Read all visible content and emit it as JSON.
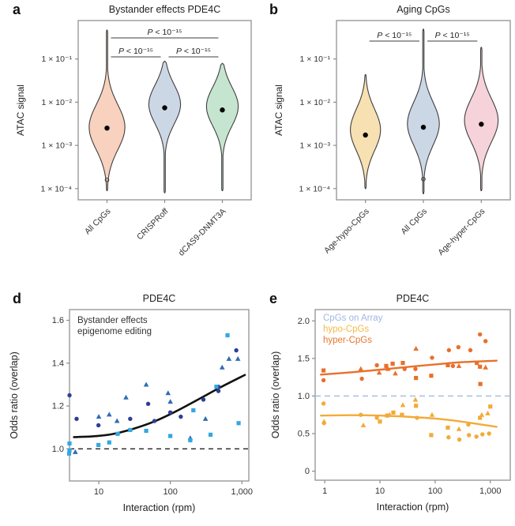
{
  "panels": [
    {
      "id": "a",
      "letter": "a"
    },
    {
      "id": "b",
      "letter": "b"
    },
    {
      "id": "d",
      "letter": "d"
    },
    {
      "id": "e",
      "letter": "e"
    }
  ],
  "styles": {
    "box_color": "#999999",
    "tick_color": "#8c8c8c",
    "tick_label_color": "#333333",
    "axis_label_color": "#222222",
    "title_color": "#222222",
    "violin_stroke": "#3f3f3f",
    "median_dot_color": "#000000",
    "pvalue_color": "#222222"
  },
  "chart_data": [
    {
      "id": "a",
      "type": "violin",
      "title": "Bystander effects PDE4C",
      "ylabel": "ATAC signal",
      "yscale": "log10",
      "ylim_log10": [
        -4.26,
        -0.11
      ],
      "yticks": [
        {
          "log10": -1,
          "label": "1 × 10⁻¹"
        },
        {
          "log10": -2,
          "label": "1 × 10⁻²"
        },
        {
          "log10": -3,
          "label": "1 × 10⁻³"
        },
        {
          "log10": -4,
          "label": "1 × 10⁻⁴"
        }
      ],
      "categories": [
        "All CpGs",
        "CRISPRoff",
        "dCAS9-DNMT3A"
      ],
      "violins": [
        {
          "label": "All CpGs",
          "fill": "#f8d2be",
          "median_log10": -2.6,
          "peak_log10": -2.58,
          "spread": 0.52,
          "tip_log10": -0.33,
          "tail_log10": -4.05,
          "halfwidth": 0.62,
          "ring_log10": -3.8
        },
        {
          "label": "CRISPRoff",
          "fill": "#ccd7e6",
          "median_log10": -2.13,
          "peak_log10": -2.05,
          "spread": 0.45,
          "tip_log10": -1.05,
          "tail_log10": -4.1,
          "halfwidth": 0.55
        },
        {
          "label": "dCAS9-DNMT3A",
          "fill": "#c6e5d0",
          "median_log10": -2.18,
          "peak_log10": -2.1,
          "spread": 0.45,
          "tip_log10": -1.1,
          "tail_log10": -4.05,
          "halfwidth": 0.55
        }
      ],
      "significance": [
        {
          "label": "P < 10⁻¹⁵",
          "from": 0,
          "to": 2,
          "y_offset": 22
        },
        {
          "label": "P < 10⁻¹⁵",
          "from": 0,
          "to": 1,
          "y_offset": 46
        },
        {
          "label": "P < 10⁻¹⁵",
          "from": 1,
          "to": 2,
          "y_offset": 46
        }
      ]
    },
    {
      "id": "b",
      "type": "violin",
      "title": "Aging CpGs",
      "ylabel": "ATAC signal",
      "yscale": "log10",
      "ylim_log10": [
        -4.26,
        -0.11
      ],
      "yticks": [
        {
          "log10": -1,
          "label": "1 × 10⁻¹"
        },
        {
          "log10": -2,
          "label": "1 × 10⁻²"
        },
        {
          "log10": -3,
          "label": "1 × 10⁻³"
        },
        {
          "log10": -4,
          "label": "1 × 10⁻⁴"
        }
      ],
      "categories": [
        "Age-hypo-CpGs",
        "All CpGs",
        "Age-hyper-CpGs"
      ],
      "violins": [
        {
          "label": "Age-hypo-CpGs",
          "fill": "#f7e0b2",
          "median_log10": -2.76,
          "peak_log10": -2.64,
          "spread": 0.48,
          "tip_log10": -1.36,
          "tail_log10": -4.0,
          "halfwidth": 0.52
        },
        {
          "label": "All CpGs",
          "fill": "#ccd7e6",
          "median_log10": -2.58,
          "peak_log10": -2.5,
          "spread": 0.5,
          "tip_log10": -0.31,
          "tail_log10": -4.12,
          "halfwidth": 0.55,
          "ring_log10": -3.78
        },
        {
          "label": "Age-hyper-CpGs",
          "fill": "#f6d3da",
          "median_log10": -2.51,
          "peak_log10": -2.42,
          "spread": 0.5,
          "tip_log10": -0.73,
          "tail_log10": -4.05,
          "halfwidth": 0.58
        }
      ],
      "significance": [
        {
          "label": "P < 10⁻¹⁵",
          "from": 0,
          "to": 1,
          "y_offset": 26
        },
        {
          "label": "P < 10⁻¹⁵",
          "from": 1,
          "to": 2,
          "y_offset": 26
        }
      ]
    },
    {
      "id": "d",
      "type": "scatter",
      "title": "PDE4C",
      "xlabel": "Interaction (rpm)",
      "ylabel": "Odds ratio (overlap)",
      "xscale": "log10",
      "xlim": [
        3.9,
        1250
      ],
      "ylim": [
        0.85,
        1.65
      ],
      "xticks": [
        {
          "v": 10,
          "label": "10"
        },
        {
          "v": 100,
          "label": "100"
        },
        {
          "v": 1000,
          "label": "1,000"
        }
      ],
      "yticks": [
        {
          "v": 1.0,
          "label": "1.0"
        },
        {
          "v": 1.2,
          "label": "1.2"
        },
        {
          "v": 1.4,
          "label": "1.4"
        },
        {
          "v": 1.6,
          "label": "1.6"
        }
      ],
      "annotation": [
        "Bystander effects",
        "epigenome editing"
      ],
      "ref_line": {
        "y": 1.0,
        "color": "#222222",
        "dash": "6,5",
        "width": 1.4
      },
      "trends": [
        {
          "name": "fit",
          "color": "#111111",
          "width": 2.6,
          "points": [
            [
              4.5,
              1.055
            ],
            [
              8,
              1.058
            ],
            [
              15,
              1.068
            ],
            [
              30,
              1.093
            ],
            [
              60,
              1.128
            ],
            [
              120,
              1.175
            ],
            [
              250,
              1.232
            ],
            [
              500,
              1.287
            ],
            [
              1100,
              1.345
            ]
          ]
        }
      ],
      "series": [
        {
          "name": "circle-points",
          "marker": "c",
          "color": "#2c3f97",
          "points": [
            [
              3.9,
              1.25
            ],
            [
              4.9,
              1.14
            ],
            [
              9.9,
              1.11
            ],
            [
              27.5,
              1.14
            ],
            [
              49,
              1.21
            ],
            [
              60,
              1.13
            ],
            [
              100,
              1.17
            ],
            [
              140,
              1.15
            ],
            [
              290,
              1.23
            ],
            [
              470,
              1.29
            ],
            [
              470,
              1.27
            ],
            [
              835,
              1.46
            ]
          ]
        },
        {
          "name": "triangle-points",
          "marker": "t",
          "color": "#2e6cb5",
          "points": [
            [
              4.7,
              0.985
            ],
            [
              10,
              1.15
            ],
            [
              14,
              1.16
            ],
            [
              18,
              1.13
            ],
            [
              24,
              1.24
            ],
            [
              46,
              1.3
            ],
            [
              93,
              1.26
            ],
            [
              100,
              1.22
            ],
            [
              190,
              1.05
            ],
            [
              310,
              1.14
            ],
            [
              530,
              1.38
            ],
            [
              660,
              1.42
            ],
            [
              880,
              1.42
            ]
          ]
        },
        {
          "name": "square-points",
          "marker": "s",
          "color": "#33a7e0",
          "points": [
            [
              3.9,
              1.025
            ],
            [
              3.9,
              0.993
            ],
            [
              3.85,
              0.978
            ],
            [
              9.9,
              1.018
            ],
            [
              14,
              1.03
            ],
            [
              18.4,
              1.07
            ],
            [
              27.5,
              1.088
            ],
            [
              46,
              1.084
            ],
            [
              100,
              1.06
            ],
            [
              190,
              1.04
            ],
            [
              210,
              1.18
            ],
            [
              365,
              1.066
            ],
            [
              440,
              1.29
            ],
            [
              630,
              1.53
            ],
            [
              900,
              1.12
            ]
          ]
        }
      ]
    },
    {
      "id": "e",
      "type": "scatter",
      "title": "PDE4C",
      "xlabel": "Interaction (rpm)",
      "ylabel": "Odds ratio (overlap)",
      "xscale": "log10",
      "xlim": [
        0.67,
        2300
      ],
      "ylim": [
        -0.12,
        2.15
      ],
      "xticks": [
        {
          "v": 1,
          "label": "1"
        },
        {
          "v": 10,
          "label": "10"
        },
        {
          "v": 100,
          "label": "100"
        },
        {
          "v": 1000,
          "label": "1,000"
        }
      ],
      "yticks": [
        {
          "v": 0,
          "label": "0"
        },
        {
          "v": 0.5,
          "label": "0.5"
        },
        {
          "v": 1.0,
          "label": "1.0"
        },
        {
          "v": 1.5,
          "label": "1.5"
        },
        {
          "v": 2.0,
          "label": "2.0"
        }
      ],
      "legend": [
        {
          "label": "CpGs on Array",
          "color": "#a0b8e0"
        },
        {
          "label": "hypo-CpGs",
          "color": "#f5b94a"
        },
        {
          "label": "hyper-CpGs",
          "color": "#e8762f"
        }
      ],
      "ref_line": {
        "y": 1.0,
        "color": "#aac2e4",
        "dash": "7,5",
        "width": 1.6
      },
      "trends": [
        {
          "name": "hyper-fit",
          "color": "#e8702c",
          "width": 2.4,
          "points": [
            [
              0.85,
              1.285
            ],
            [
              3,
              1.315
            ],
            [
              10,
              1.35
            ],
            [
              30,
              1.385
            ],
            [
              100,
              1.42
            ],
            [
              300,
              1.45
            ],
            [
              1300,
              1.47
            ]
          ]
        },
        {
          "name": "hypo-fit",
          "color": "#f2ab38",
          "width": 2.4,
          "points": [
            [
              0.85,
              0.74
            ],
            [
              3,
              0.745
            ],
            [
              10,
              0.74
            ],
            [
              30,
              0.725
            ],
            [
              100,
              0.7
            ],
            [
              300,
              0.66
            ],
            [
              1300,
              0.59
            ]
          ]
        }
      ],
      "series": [
        {
          "name": "hyper-CpGs",
          "color": "#e8702c",
          "points": [
            [
              0.95,
              1.34,
              "s"
            ],
            [
              0.95,
              1.21,
              "c"
            ],
            [
              4.5,
              1.36,
              "t"
            ],
            [
              4.7,
              1.23,
              "c"
            ],
            [
              8.8,
              1.41,
              "c"
            ],
            [
              9.7,
              1.31,
              "t"
            ],
            [
              13,
              1.4,
              "s"
            ],
            [
              14,
              1.36,
              "t"
            ],
            [
              17,
              1.43,
              "s"
            ],
            [
              19,
              1.3,
              "t"
            ],
            [
              26,
              1.44,
              "s"
            ],
            [
              28,
              1.36,
              "c"
            ],
            [
              44,
              1.36,
              "c"
            ],
            [
              45,
              1.63,
              "t"
            ],
            [
              45,
              1.24,
              "s"
            ],
            [
              85,
              1.27,
              "s"
            ],
            [
              88,
              1.51,
              "c"
            ],
            [
              170,
              1.41,
              "s"
            ],
            [
              178,
              1.61,
              "c"
            ],
            [
              210,
              1.4,
              "c"
            ],
            [
              264,
              1.65,
              "c"
            ],
            [
              270,
              1.4,
              "t"
            ],
            [
              435,
              1.61,
              "c"
            ],
            [
              570,
              1.44,
              "s"
            ],
            [
              650,
              1.82,
              "c"
            ],
            [
              650,
              1.39,
              "s"
            ],
            [
              660,
              1.16,
              "s"
            ],
            [
              820,
              1.73,
              "c"
            ],
            [
              820,
              1.38,
              "t"
            ]
          ]
        },
        {
          "name": "hypo-CpGs",
          "color": "#f2ab38",
          "points": [
            [
              0.95,
              0.9,
              "c"
            ],
            [
              0.97,
              0.66,
              "t"
            ],
            [
              0.97,
              0.64,
              "c"
            ],
            [
              4.5,
              0.75,
              "c"
            ],
            [
              5,
              0.61,
              "t"
            ],
            [
              8.8,
              0.71,
              "c"
            ],
            [
              10,
              0.66,
              "s"
            ],
            [
              13.5,
              0.74,
              "s"
            ],
            [
              15,
              0.75,
              "t"
            ],
            [
              17.5,
              0.78,
              "s"
            ],
            [
              25,
              0.75,
              "s"
            ],
            [
              26,
              0.88,
              "t"
            ],
            [
              44,
              0.95,
              "t"
            ],
            [
              45,
              0.87,
              "s"
            ],
            [
              47,
              0.71,
              "c"
            ],
            [
              85,
              0.48,
              "s"
            ],
            [
              88,
              0.75,
              "t"
            ],
            [
              170,
              0.58,
              "s"
            ],
            [
              175,
              0.45,
              "c"
            ],
            [
              270,
              0.56,
              "t"
            ],
            [
              275,
              0.42,
              "c"
            ],
            [
              400,
              0.62,
              "c"
            ],
            [
              410,
              0.48,
              "c"
            ],
            [
              560,
              0.46,
              "c"
            ],
            [
              650,
              0.71,
              "s"
            ],
            [
              700,
              0.75,
              "t"
            ],
            [
              720,
              0.49,
              "c"
            ],
            [
              900,
              0.77,
              "t"
            ],
            [
              950,
              0.5,
              "c"
            ],
            [
              1000,
              0.86,
              "s"
            ]
          ]
        }
      ]
    }
  ]
}
